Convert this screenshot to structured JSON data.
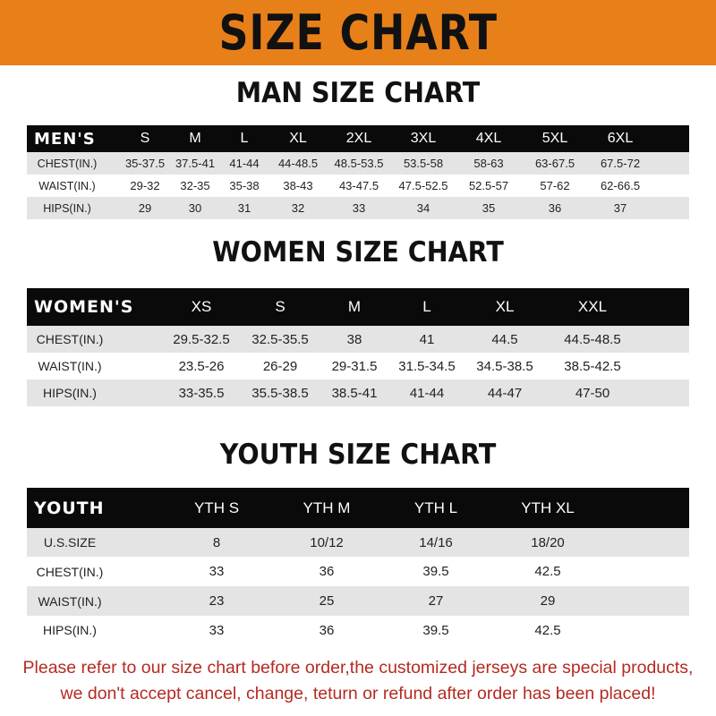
{
  "banner": {
    "title": "SIZE CHART",
    "color": "#E8801A"
  },
  "men": {
    "title": "MAN SIZE CHART",
    "header": [
      "MEN'S",
      "S",
      "M",
      "L",
      "XL",
      "2XL",
      "3XL",
      "4XL",
      "5XL",
      "6XL"
    ],
    "rows": [
      [
        "CHEST(IN.)",
        "35-37.5",
        "37.5-41",
        "41-44",
        "44-48.5",
        "48.5-53.5",
        "53.5-58",
        "58-63",
        "63-67.5",
        "67.5-72"
      ],
      [
        "WAIST(IN.)",
        "29-32",
        "32-35",
        "35-38",
        "38-43",
        "43-47.5",
        "47.5-52.5",
        "52.5-57",
        "57-62",
        "62-66.5"
      ],
      [
        "HIPS(IN.)",
        "29",
        "30",
        "31",
        "32",
        "33",
        "34",
        "35",
        "36",
        "37"
      ]
    ]
  },
  "women": {
    "title": "WOMEN SIZE CHART",
    "header": [
      "WOMEN'S",
      "XS",
      "S",
      "M",
      "L",
      "XL",
      "XXL"
    ],
    "rows": [
      [
        "CHEST(IN.)",
        "29.5-32.5",
        "32.5-35.5",
        "38",
        "41",
        "44.5",
        "44.5-48.5"
      ],
      [
        "WAIST(IN.)",
        "23.5-26",
        "26-29",
        "29-31.5",
        "31.5-34.5",
        "34.5-38.5",
        "38.5-42.5"
      ],
      [
        "HIPS(IN.)",
        "33-35.5",
        "35.5-38.5",
        "38.5-41",
        "41-44",
        "44-47",
        "47-50"
      ]
    ]
  },
  "youth": {
    "title": "YOUTH SIZE CHART",
    "header": [
      "YOUTH",
      "YTH S",
      "YTH M",
      "YTH L",
      "YTH XL"
    ],
    "rows": [
      [
        "U.S.SIZE",
        "8",
        "10/12",
        "14/16",
        "18/20"
      ],
      [
        "CHEST(IN.)",
        "33",
        "36",
        "39.5",
        "42.5"
      ],
      [
        "WAIST(IN.)",
        "23",
        "25",
        "27",
        "29"
      ],
      [
        "HIPS(IN.)",
        "33",
        "36",
        "39.5",
        "42.5"
      ]
    ]
  },
  "note": {
    "line1": "Please refer to our size chart before order,the customized jerseys are special products,",
    "line2": "we don't accept cancel, change, teturn or refund after order has been placed!",
    "color": "#B52A22"
  }
}
